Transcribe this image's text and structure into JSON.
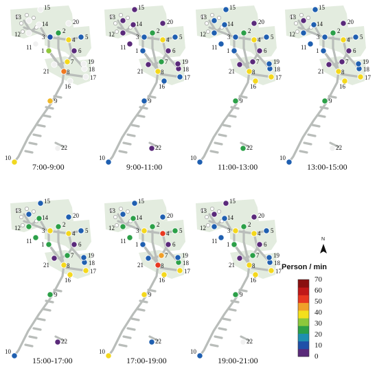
{
  "panels": [
    {
      "time": "7:00-9:00",
      "colors": [
        "#90c83c",
        "#2ca048",
        "#2050a8",
        "#f4d81c",
        "#1f5fb0",
        "#5a2a7a",
        "#f4d81c",
        "#f07820",
        "#f0b828",
        "#f0d820",
        "#f0f0f0",
        "#f0f0f0",
        "#f0f0f0",
        "#f0f0f0",
        "#f0f0f0",
        "#f0f0f0",
        "#f0f0f0",
        "#f0f0f0",
        "#f0f0f0",
        "#f0f0f0",
        "#f0f0f0",
        "#f0f0f0"
      ]
    },
    {
      "time": "9:00-11:00",
      "colors": [
        "#1f5fb0",
        "#2ca048",
        "#1f5fb0",
        "#f4d81c",
        "#1f5fb0",
        "#5a2a7a",
        "#2ca048",
        "#f4d81c",
        "#1f5fb0",
        "#1f5fb0",
        "#5a2a7a",
        "#5a2a7a",
        "#5a2a7a",
        "#5a2a7a",
        "#5a2a7a",
        "#1f5fb0",
        "#1f5fb0",
        "#5a2a7a",
        "#5a2a7a",
        "#5a2a7a",
        "#5a2a7a",
        "#5a2a7a"
      ]
    },
    {
      "time": "11:00-13:00",
      "colors": [
        "#1f5fb0",
        "#2ca048",
        "#1f5fb0",
        "#f4d81c",
        "#1f5fb0",
        "#5a2a7a",
        "#5a2a7a",
        "#f4d81c",
        "#2ca048",
        "#1f5fb0",
        "#1f5fb0",
        "#1f5fb0",
        "#1f5fb0",
        "#1f5fb0",
        "#1f5fb0",
        "#f4d81c",
        "#f4d81c",
        "#1f5fb0",
        "#1f5fb0",
        "#5a2a7a",
        "#5a2a7a",
        "#2ca048"
      ]
    },
    {
      "time": "13:00-15:00",
      "colors": [
        "#1f5fb0",
        "#2ca048",
        "#1f5fb0",
        "#f4d81c",
        "#1f5fb0",
        "#5a2a7a",
        "#5a2a7a",
        "#f4d81c",
        "#2ca048",
        "#1f5fb0",
        "#1f5fb0",
        "#1f5fb0",
        "#5a2a7a",
        "#1f5fb0",
        "#1f5fb0",
        "#f4d81c",
        "#f4d81c",
        "#1f5fb0",
        "#1f5fb0",
        "#5a2a7a",
        "#5a2a7a",
        "#f0f0f0"
      ]
    },
    {
      "time": "15:00-17:00",
      "colors": [
        "#2ca048",
        "#2ca048",
        "#f4d81c",
        "#f4d81c",
        "#1f5fb0",
        "#5a2a7a",
        "#2ca048",
        "#f4d81c",
        "#2ca048",
        "#1f5fb0",
        "#2ca048",
        "#2ca048",
        "#1f5fb0",
        "#2ca048",
        "#1f5fb0",
        "#f4d81c",
        "#f4d81c",
        "#1f5fb0",
        "#1f5fb0",
        "#1f5fb0",
        "#5a2a7a",
        "#5a2a7a"
      ]
    },
    {
      "time": "17:00-19:00",
      "colors": [
        "#1f5fb0",
        "#2ca048",
        "#f4d81c",
        "#e83820",
        "#2ca048",
        "#5a2a7a",
        "#f0a028",
        "#e83820",
        "#f4d81c",
        "#f4d81c",
        "#2ca048",
        "#2ca048",
        "#1f5fb0",
        "#2ca048",
        "#1f5fb0",
        "#f4d81c",
        "#f4d81c",
        "#2ca048",
        "#1f5fb0",
        "#1f5fb0",
        "#1f5fb0",
        "#1f5fb0"
      ]
    },
    {
      "time": "19:00-21:00",
      "colors": [
        "#2ca048",
        "#2ca048",
        "#f4d81c",
        "#f4d81c",
        "#1f5fb0",
        "#5a2a7a",
        "#2ca048",
        "#f4d81c",
        "#2ca048",
        "#1f5fb0",
        "#1f5fb0",
        "#1f5fb0",
        "#5a2a7a",
        "#1f5fb0",
        "#5a2a7a",
        "#f4d81c",
        "#f4d81c",
        "#1f5fb0",
        "#1f5fb0",
        "#5a2a7a",
        "#5a2a7a",
        "#f0f0f0"
      ]
    }
  ],
  "legend": {
    "title": "Person / min",
    "north_letter": "N",
    "ticks": [
      "70",
      "60",
      "50",
      "40",
      "30",
      "20",
      "10",
      "0"
    ],
    "ramp": [
      "#5a2a7a",
      "#2050a8",
      "#1f8fb0",
      "#2ca048",
      "#8cc83c",
      "#f4e01c",
      "#f0a028",
      "#e83820",
      "#c01818",
      "#8a1010"
    ]
  }
}
